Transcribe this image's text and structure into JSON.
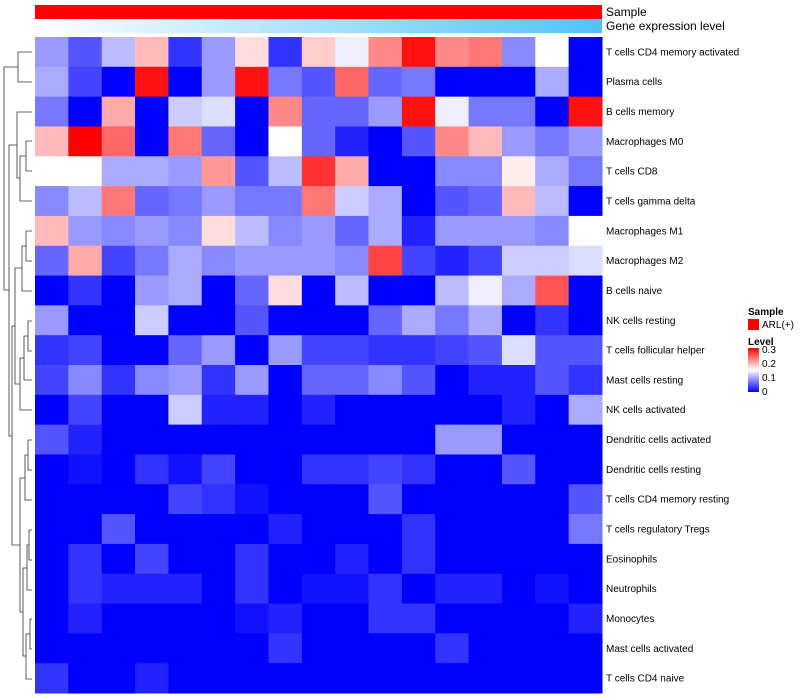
{
  "chart_data": {
    "type": "heatmap",
    "annotation_tracks": [
      {
        "label": "Sample",
        "color": "#ff0000"
      },
      {
        "label": "Gene expression level",
        "gradient_from": "#ffffff",
        "gradient_to": "#4fc3f7"
      }
    ],
    "rows": [
      "T cells CD4 memory activated",
      "Plasma cells",
      "B cells memory",
      "Macrophages M0",
      "T cells CD8",
      "T cells gamma delta",
      "Macrophages M1",
      "Macrophages M2",
      "B cells naive",
      "NK cells resting",
      "T cells follicular helper",
      "Mast cells resting",
      "NK cells activated",
      "Dendritic cells activated",
      "Dendritic cells resting",
      "T cells CD4 memory resting",
      "T cells regulatory  Tregs",
      "Eosinophils",
      "Neutrophils",
      "Monocytes",
      "Mast cells activated",
      "T cells CD4 naive"
    ],
    "n_columns": 17,
    "values": [
      [
        0.09,
        0.05,
        0.11,
        0.19,
        0.03,
        0.09,
        0.17,
        0.03,
        0.18,
        0.14,
        0.22,
        0.29,
        0.22,
        0.23,
        0.08,
        0.15,
        0.0
      ],
      [
        0.1,
        0.04,
        0.0,
        0.29,
        0.0,
        0.09,
        0.29,
        0.07,
        0.05,
        0.24,
        0.06,
        0.07,
        0.0,
        0.0,
        0.0,
        0.1,
        0.0
      ],
      [
        0.07,
        0.0,
        0.2,
        0.0,
        0.12,
        0.13,
        0.0,
        0.22,
        0.06,
        0.06,
        0.09,
        0.29,
        0.14,
        0.07,
        0.07,
        0.0,
        0.29
      ],
      [
        0.19,
        0.3,
        0.24,
        0.0,
        0.23,
        0.06,
        0.0,
        0.15,
        0.06,
        0.02,
        0.0,
        0.05,
        0.22,
        0.19,
        0.09,
        0.07,
        0.09
      ],
      [
        0.15,
        0.15,
        0.1,
        0.1,
        0.09,
        0.21,
        0.05,
        0.11,
        0.27,
        0.2,
        0.0,
        0.0,
        0.08,
        0.08,
        0.16,
        0.1,
        0.07
      ],
      [
        0.08,
        0.11,
        0.23,
        0.06,
        0.07,
        0.09,
        0.07,
        0.07,
        0.23,
        0.12,
        0.1,
        0.0,
        0.05,
        0.06,
        0.19,
        0.11,
        0.0
      ],
      [
        0.19,
        0.09,
        0.08,
        0.09,
        0.08,
        0.17,
        0.11,
        0.08,
        0.09,
        0.06,
        0.1,
        0.02,
        0.09,
        0.09,
        0.09,
        0.08,
        0.15
      ],
      [
        0.06,
        0.2,
        0.04,
        0.07,
        0.1,
        0.08,
        0.09,
        0.09,
        0.09,
        0.08,
        0.26,
        0.04,
        0.02,
        0.04,
        0.12,
        0.12,
        0.13
      ],
      [
        0.0,
        0.03,
        0.0,
        0.09,
        0.1,
        0.0,
        0.06,
        0.17,
        0.0,
        0.11,
        0.0,
        0.0,
        0.11,
        0.14,
        0.1,
        0.25,
        0.0
      ],
      [
        0.09,
        0.0,
        0.0,
        0.12,
        0.0,
        0.0,
        0.05,
        0.0,
        0.0,
        0.0,
        0.06,
        0.1,
        0.07,
        0.1,
        0.0,
        0.03,
        0.0
      ],
      [
        0.03,
        0.04,
        0.0,
        0.0,
        0.06,
        0.09,
        0.0,
        0.09,
        0.04,
        0.04,
        0.03,
        0.03,
        0.04,
        0.05,
        0.13,
        0.05,
        0.05
      ],
      [
        0.04,
        0.08,
        0.03,
        0.08,
        0.09,
        0.03,
        0.09,
        0.0,
        0.06,
        0.06,
        0.08,
        0.05,
        0.0,
        0.02,
        0.02,
        0.05,
        0.03
      ],
      [
        0.0,
        0.04,
        0.0,
        0.0,
        0.12,
        0.02,
        0.02,
        0.0,
        0.02,
        0.0,
        0.0,
        0.0,
        0.0,
        0.0,
        0.02,
        0.0,
        0.1
      ],
      [
        0.05,
        0.02,
        0.0,
        0.0,
        0.0,
        0.0,
        0.0,
        0.0,
        0.0,
        0.0,
        0.0,
        0.0,
        0.09,
        0.09,
        0.0,
        0.0,
        0.0
      ],
      [
        0.0,
        0.01,
        0.0,
        0.03,
        0.01,
        0.04,
        0.0,
        0.0,
        0.03,
        0.03,
        0.04,
        0.03,
        0.0,
        0.0,
        0.05,
        0.0,
        0.0
      ],
      [
        0.0,
        0.0,
        0.0,
        0.0,
        0.04,
        0.03,
        0.01,
        0.0,
        0.0,
        0.0,
        0.05,
        0.0,
        0.0,
        0.0,
        0.0,
        0.0,
        0.05
      ],
      [
        0.0,
        0.0,
        0.05,
        0.0,
        0.0,
        0.0,
        0.0,
        0.02,
        0.0,
        0.0,
        0.0,
        0.03,
        0.0,
        0.0,
        0.0,
        0.0,
        0.07
      ],
      [
        0.0,
        0.03,
        0.0,
        0.04,
        0.0,
        0.0,
        0.03,
        0.0,
        0.0,
        0.02,
        0.0,
        0.03,
        0.0,
        0.0,
        0.0,
        0.0,
        0.0
      ],
      [
        0.0,
        0.03,
        0.02,
        0.02,
        0.02,
        0.0,
        0.03,
        0.0,
        0.01,
        0.01,
        0.03,
        0.0,
        0.02,
        0.02,
        0.0,
        0.01,
        0.0
      ],
      [
        0.0,
        0.02,
        0.0,
        0.0,
        0.0,
        0.0,
        0.01,
        0.02,
        0.0,
        0.0,
        0.03,
        0.03,
        0.0,
        0.0,
        0.0,
        0.0,
        0.02
      ],
      [
        0.0,
        0.0,
        0.0,
        0.0,
        0.0,
        0.0,
        0.0,
        0.03,
        0.0,
        0.0,
        0.0,
        0.0,
        0.03,
        0.0,
        0.0,
        0.0,
        0.0
      ],
      [
        0.03,
        0.0,
        0.0,
        0.02,
        0.0,
        0.0,
        0.0,
        0.0,
        0.0,
        0.0,
        0.0,
        0.0,
        0.0,
        0.0,
        0.0,
        0.0,
        0.0
      ]
    ],
    "color_scale": {
      "min": 0,
      "max": 0.3,
      "low_color": "#0000ff",
      "mid_color": "#ffffff",
      "high_color": "#ff0000",
      "mid_value": 0.15
    },
    "legend": {
      "sample_title": "Sample",
      "sample_entry": "ARL(+)",
      "sample_color": "#ff0000",
      "level_title": "Level",
      "level_ticks": [
        "0.3",
        "0.2",
        "0.1",
        "0"
      ],
      "placement": "right"
    },
    "dendrogram": "left"
  }
}
